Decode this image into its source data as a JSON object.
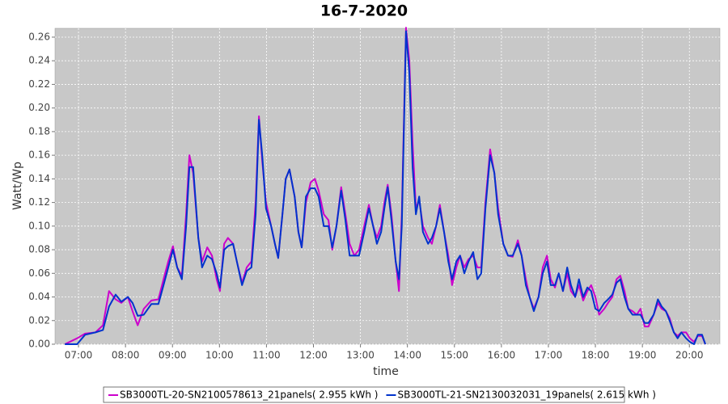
{
  "chart_data": {
    "type": "line",
    "title": "16-7-2020",
    "x_label": "time",
    "y_label": "Watt/Wp",
    "grid": true,
    "legend_position": "bottom",
    "xlim": [
      6.5,
      20.65
    ],
    "ylim": [
      0,
      0.2675
    ],
    "xticks": [
      {
        "value": 7,
        "label": "07:00"
      },
      {
        "value": 8,
        "label": "08:00"
      },
      {
        "value": 9,
        "label": "09:00"
      },
      {
        "value": 10,
        "label": "10:00"
      },
      {
        "value": 11,
        "label": "11:00"
      },
      {
        "value": 12,
        "label": "12:00"
      },
      {
        "value": 13,
        "label": "13:00"
      },
      {
        "value": 14,
        "label": "14:00"
      },
      {
        "value": 15,
        "label": "15:00"
      },
      {
        "value": 16,
        "label": "16:00"
      },
      {
        "value": 17,
        "label": "17:00"
      },
      {
        "value": 18,
        "label": "18:00"
      },
      {
        "value": 19,
        "label": "19:00"
      },
      {
        "value": 20,
        "label": "20:00"
      }
    ],
    "yticks": [
      {
        "value": 0,
        "label": "0.00"
      },
      {
        "value": 0.02,
        "label": "0.02"
      },
      {
        "value": 0.04,
        "label": "0.04"
      },
      {
        "value": 0.06,
        "label": "0.06"
      },
      {
        "value": 0.08,
        "label": "0.08"
      },
      {
        "value": 0.1,
        "label": "0.10"
      },
      {
        "value": 0.12,
        "label": "0.12"
      },
      {
        "value": 0.14,
        "label": "0.14"
      },
      {
        "value": 0.16,
        "label": "0.16"
      },
      {
        "value": 0.18,
        "label": "0.18"
      },
      {
        "value": 0.2,
        "label": "0.20"
      },
      {
        "value": 0.22,
        "label": "0.22"
      },
      {
        "value": 0.24,
        "label": "0.24"
      },
      {
        "value": 0.26,
        "label": "0.26"
      }
    ],
    "x": [
      6.71,
      6.97,
      7.14,
      7.36,
      7.52,
      7.65,
      7.79,
      7.91,
      8.05,
      8.15,
      8.26,
      8.39,
      8.55,
      8.7,
      8.81,
      8.91,
      9.01,
      9.1,
      9.2,
      9.29,
      9.36,
      9.44,
      9.55,
      9.63,
      9.74,
      9.84,
      9.94,
      10.01,
      10.1,
      10.18,
      10.29,
      10.37,
      10.48,
      10.58,
      10.68,
      10.77,
      10.84,
      10.91,
      10.99,
      11.1,
      11.18,
      11.25,
      11.34,
      11.41,
      11.49,
      11.6,
      11.68,
      11.75,
      11.84,
      11.94,
      12.03,
      12.11,
      12.22,
      12.32,
      12.4,
      12.49,
      12.59,
      12.68,
      12.77,
      12.87,
      12.97,
      13.08,
      13.18,
      13.27,
      13.35,
      13.44,
      13.51,
      13.58,
      13.66,
      13.75,
      13.82,
      13.88,
      13.97,
      14.04,
      14.11,
      14.18,
      14.25,
      14.33,
      14.44,
      14.52,
      14.61,
      14.69,
      14.78,
      14.87,
      14.95,
      15.04,
      15.12,
      15.21,
      15.3,
      15.4,
      15.49,
      15.57,
      15.66,
      15.76,
      15.85,
      15.93,
      16.04,
      16.14,
      16.24,
      16.35,
      16.43,
      16.52,
      16.6,
      16.69,
      16.79,
      16.88,
      16.97,
      17.05,
      17.14,
      17.22,
      17.31,
      17.4,
      17.48,
      17.57,
      17.65,
      17.74,
      17.83,
      17.91,
      18.0,
      18.08,
      18.19,
      18.27,
      18.36,
      18.45,
      18.53,
      18.62,
      18.7,
      18.79,
      18.88,
      18.96,
      19.05,
      19.13,
      19.24,
      19.33,
      19.41,
      19.5,
      19.58,
      19.67,
      19.75,
      19.83,
      19.93,
      20.01,
      20.1,
      20.18,
      20.27,
      20.34
    ],
    "series": [
      {
        "name": "SB3000TL-20-SN2100578613_21panels( 2.955 kWh )",
        "color": "#cc00cc",
        "values": [
          0,
          0.005,
          0.009,
          0.01,
          0.016,
          0.045,
          0.038,
          0.035,
          0.04,
          0.028,
          0.016,
          0.03,
          0.037,
          0.038,
          0.055,
          0.07,
          0.083,
          0.065,
          0.058,
          0.11,
          0.16,
          0.145,
          0.09,
          0.07,
          0.082,
          0.075,
          0.055,
          0.045,
          0.085,
          0.09,
          0.085,
          0.07,
          0.052,
          0.065,
          0.07,
          0.12,
          0.193,
          0.155,
          0.12,
          0.1,
          0.085,
          0.073,
          0.11,
          0.14,
          0.148,
          0.125,
          0.095,
          0.082,
          0.12,
          0.137,
          0.14,
          0.13,
          0.11,
          0.105,
          0.08,
          0.1,
          0.133,
          0.11,
          0.085,
          0.075,
          0.08,
          0.1,
          0.118,
          0.1,
          0.09,
          0.1,
          0.12,
          0.135,
          0.11,
          0.07,
          0.045,
          0.11,
          0.268,
          0.24,
          0.17,
          0.115,
          0.122,
          0.1,
          0.09,
          0.085,
          0.1,
          0.118,
          0.095,
          0.075,
          0.05,
          0.065,
          0.075,
          0.065,
          0.072,
          0.075,
          0.065,
          0.065,
          0.12,
          0.165,
          0.145,
          0.115,
          0.085,
          0.075,
          0.074,
          0.088,
          0.075,
          0.055,
          0.04,
          0.03,
          0.04,
          0.065,
          0.075,
          0.055,
          0.048,
          0.06,
          0.045,
          0.06,
          0.045,
          0.04,
          0.05,
          0.037,
          0.045,
          0.05,
          0.04,
          0.025,
          0.03,
          0.035,
          0.04,
          0.055,
          0.058,
          0.045,
          0.03,
          0.028,
          0.025,
          0.03,
          0.015,
          0.015,
          0.025,
          0.035,
          0.03,
          0.028,
          0.022,
          0.01,
          0.007,
          0.01,
          0.01,
          0.005,
          0.002,
          0.007,
          0.007,
          0
        ]
      },
      {
        "name": "SB3000TL-21-SN2130032031_19panels( 2.615 kWh )",
        "color": "#0033cc",
        "values": [
          0,
          0,
          0.008,
          0.01,
          0.012,
          0.032,
          0.042,
          0.036,
          0.04,
          0.035,
          0.024,
          0.025,
          0.034,
          0.034,
          0.05,
          0.065,
          0.08,
          0.065,
          0.055,
          0.1,
          0.15,
          0.15,
          0.09,
          0.065,
          0.075,
          0.072,
          0.06,
          0.048,
          0.08,
          0.083,
          0.085,
          0.07,
          0.05,
          0.062,
          0.065,
          0.11,
          0.19,
          0.16,
          0.115,
          0.1,
          0.085,
          0.073,
          0.11,
          0.14,
          0.148,
          0.125,
          0.095,
          0.082,
          0.125,
          0.132,
          0.132,
          0.125,
          0.1,
          0.1,
          0.082,
          0.1,
          0.13,
          0.105,
          0.075,
          0.075,
          0.075,
          0.095,
          0.115,
          0.1,
          0.085,
          0.095,
          0.115,
          0.133,
          0.105,
          0.07,
          0.055,
          0.1,
          0.265,
          0.23,
          0.15,
          0.11,
          0.125,
          0.095,
          0.085,
          0.09,
          0.1,
          0.115,
          0.095,
          0.07,
          0.055,
          0.07,
          0.075,
          0.06,
          0.07,
          0.078,
          0.055,
          0.06,
          0.115,
          0.16,
          0.145,
          0.11,
          0.085,
          0.075,
          0.075,
          0.085,
          0.075,
          0.05,
          0.04,
          0.028,
          0.04,
          0.06,
          0.07,
          0.05,
          0.05,
          0.06,
          0.045,
          0.065,
          0.05,
          0.04,
          0.055,
          0.04,
          0.048,
          0.045,
          0.03,
          0.028,
          0.035,
          0.038,
          0.042,
          0.052,
          0.055,
          0.04,
          0.03,
          0.025,
          0.025,
          0.025,
          0.018,
          0.018,
          0.025,
          0.038,
          0.032,
          0.028,
          0.02,
          0.01,
          0.005,
          0.01,
          0.005,
          0.002,
          0,
          0.008,
          0.008,
          0
        ]
      }
    ]
  }
}
